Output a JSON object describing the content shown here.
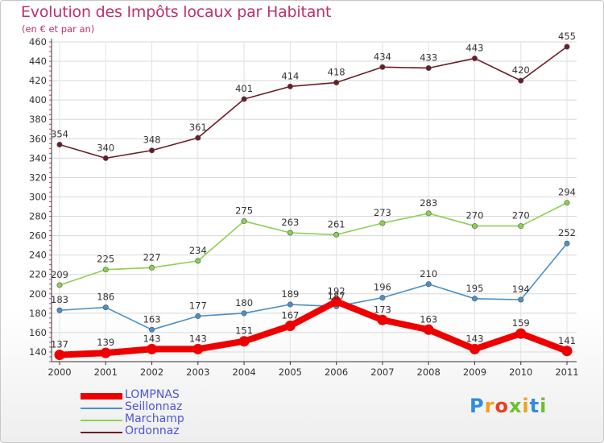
{
  "header": {
    "title": "Evolution des Impôts locaux par Habitant",
    "subtitle": "(en € et par an)"
  },
  "logo": {
    "letters": [
      "P",
      "r",
      "o",
      "x",
      "i",
      "t",
      "i"
    ],
    "colors": [
      "#2f8be0",
      "#f0a020",
      "#e84020",
      "#6cc030",
      "#f0a020",
      "#2f8be0",
      "#6cc030"
    ]
  },
  "chart_data": {
    "type": "line",
    "x": [
      "2000",
      "2001",
      "2002",
      "2003",
      "2004",
      "2005",
      "2006",
      "2007",
      "2008",
      "2009",
      "2010",
      "2011"
    ],
    "ylim": [
      130,
      460
    ],
    "yticks": [
      140,
      160,
      180,
      200,
      220,
      240,
      260,
      280,
      300,
      320,
      340,
      360,
      380,
      400,
      420,
      440,
      460
    ],
    "grid": true,
    "legend_position": "bottom-left",
    "series": [
      {
        "name": "LOMPNAS",
        "color": "#ee0000",
        "values": [
          137,
          139,
          143,
          143,
          151,
          167,
          192,
          173,
          163,
          143,
          159,
          141
        ],
        "labels": [
          "137",
          "139",
          "143",
          "143",
          "151",
          "167",
          "192",
          "173",
          "163",
          "143",
          "159",
          "141"
        ]
      },
      {
        "name": "Seillonnaz",
        "color": "#4a90c8",
        "values": [
          183,
          186,
          163,
          177,
          180,
          189,
          187,
          196,
          210,
          195,
          194,
          252
        ],
        "labels": [
          "183",
          "186",
          "163",
          "177",
          "180",
          "189",
          "187",
          "196",
          "210",
          "195",
          "194",
          "252"
        ]
      },
      {
        "name": "Marchamp",
        "color": "#8cd050",
        "values": [
          209,
          225,
          227,
          234,
          275,
          263,
          261,
          273,
          283,
          270,
          270,
          294
        ],
        "labels": [
          "209",
          "225",
          "227",
          "234",
          "275",
          "263",
          "261",
          "273",
          "283",
          "270",
          "270",
          "294"
        ]
      },
      {
        "name": "Ordonnaz",
        "color": "#6b1c24",
        "values": [
          354,
          340,
          348,
          361,
          401,
          414,
          418,
          434,
          433,
          443,
          420,
          455
        ],
        "labels": [
          "354",
          "340",
          "348",
          "361",
          "401",
          "414",
          "418",
          "434",
          "433",
          "443",
          "420",
          "455"
        ]
      }
    ]
  }
}
